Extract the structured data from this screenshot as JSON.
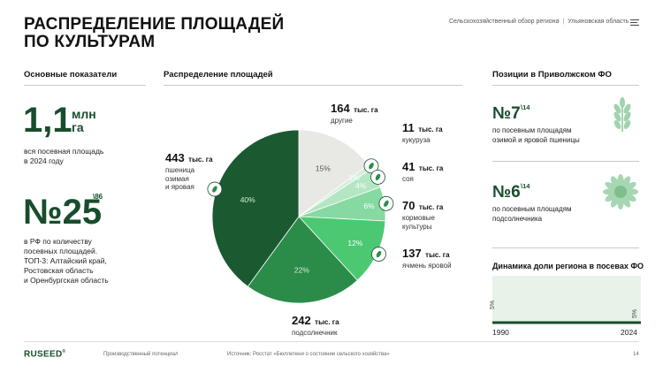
{
  "header": {
    "title_line1": "РАСПРЕДЕЛЕНИЕ ПЛОЩАДЕЙ",
    "title_line2": "ПО КУЛЬТУРАМ",
    "breadcrumb_part1": "Сельскохозяйственный обзор региона",
    "breadcrumb_sep": "|",
    "breadcrumb_part2": "Ульяновская область"
  },
  "left": {
    "heading": "Основные показатели",
    "area_value": "1,1",
    "area_unit_line1": "млн",
    "area_unit_line2": "га",
    "area_desc_line1": "вся посевная площадь",
    "area_desc_line2": "в 2024 году",
    "rank_value": "№25",
    "rank_sup": "\\86",
    "rank_desc_line1": "в РФ по количеству",
    "rank_desc_line2": "посевных площадей.",
    "rank_desc_line3": "ТОП-3: Алтайский край,",
    "rank_desc_line4": "Ростовская область",
    "rank_desc_line5": "и Оренбургская область"
  },
  "middle": {
    "heading": "Распределение площадей",
    "unit": "тыс. га"
  },
  "chart_data": {
    "type": "pie",
    "title": "Распределение площадей",
    "slices": [
      {
        "name": "другие",
        "value": 164,
        "percent_label": "15%",
        "color": "#e8e8e4"
      },
      {
        "name": "кукуруза",
        "value": 11,
        "percent_label": "1%",
        "color": "#d4efdc"
      },
      {
        "name": "соя",
        "value": 41,
        "percent_label": "4%",
        "color": "#b4e6c3"
      },
      {
        "name": "кормовые культуры",
        "value": 70,
        "percent_label": "6%",
        "color": "#86d9a0"
      },
      {
        "name": "ячмень яровой",
        "value": 137,
        "percent_label": "12%",
        "color": "#4cc873"
      },
      {
        "name": "подсолнечник",
        "value": 242,
        "percent_label": "22%",
        "color": "#2a8c48"
      },
      {
        "name": "пшеница озимая и яровая",
        "value": 443,
        "percent_label": "40%",
        "color": "#1b5a31"
      }
    ]
  },
  "pie_labels": {
    "other": {
      "value": "164",
      "name": "другие"
    },
    "corn": {
      "value": "11",
      "name": "кукуруза"
    },
    "soy": {
      "value": "41",
      "name": "соя"
    },
    "fodder": {
      "value": "70",
      "name_line1": "кормовые",
      "name_line2": "культуры"
    },
    "barley": {
      "value": "137",
      "name": "ячмень яровой"
    },
    "sunflower": {
      "value": "242",
      "name": "подсолнечник"
    },
    "wheat": {
      "value": "443",
      "name_line1": "пшеница",
      "name_line2": "озимая",
      "name_line3": "и яровая"
    }
  },
  "right": {
    "heading": "Позиции в Приволжском ФО",
    "pos1_value": "№7",
    "pos1_sup": "\\14",
    "pos1_desc_line1": "по посевным площадям",
    "pos1_desc_line2": "озимой и яровой пшеницы",
    "pos1_icon": "wheat-icon",
    "pos2_value": "№6",
    "pos2_sup": "\\14",
    "pos2_desc_line1": "по посевным площадям",
    "pos2_desc_line2": "подсолнечника",
    "pos2_icon": "sunflower-icon",
    "dynamics_heading": "Динамика доли региона в посевах ФО",
    "dyn_start_label": "5%",
    "dyn_end_label": "5%",
    "dyn_start_year": "1990",
    "dyn_end_year": "2024",
    "dynamics_data": {
      "years": [
        1990,
        2024
      ],
      "share_percent": [
        5,
        5
      ]
    }
  },
  "footer": {
    "logo": "RUSEED",
    "logo_mark": "®",
    "section": "Производственный потенциал",
    "source": "Источник: Росстат «Бюллетени о состоянии сельского хозяйства»",
    "page": "14"
  },
  "colors": {
    "brand_dark": "#174d2c",
    "wheat": "#1b5a31",
    "sunflower": "#2a8c48",
    "barley": "#4cc873",
    "fodder": "#86d9a0",
    "soy": "#b4e6c3",
    "corn": "#d4efdc",
    "other": "#e8e8e4",
    "dyn_area": "#e7f3e9"
  }
}
